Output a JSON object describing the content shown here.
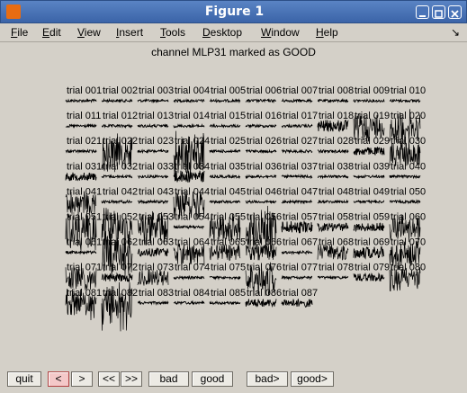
{
  "window": {
    "title": "Figure 1"
  },
  "menu": {
    "items": [
      {
        "pre": "",
        "ul": "F",
        "post": "ile"
      },
      {
        "pre": "",
        "ul": "E",
        "post": "dit"
      },
      {
        "pre": "",
        "ul": "V",
        "post": "iew"
      },
      {
        "pre": "",
        "ul": "I",
        "post": "nsert"
      },
      {
        "pre": "",
        "ul": "T",
        "post": "ools"
      },
      {
        "pre": "",
        "ul": "D",
        "post": "esktop"
      },
      {
        "pre": "",
        "ul": "W",
        "post": "indow"
      },
      {
        "pre": "",
        "ul": "H",
        "post": "elp"
      }
    ],
    "dock_icon": "↘"
  },
  "plot": {
    "title": "channel MLP31 marked as GOOD",
    "trials": [
      "trial 001",
      "trial 002",
      "trial 003",
      "trial 004",
      "trial 005",
      "trial 006",
      "trial 007",
      "trial 008",
      "trial 009",
      "trial 010",
      "trial 011",
      "trial 012",
      "trial 013",
      "trial 014",
      "trial 015",
      "trial 016",
      "trial 017",
      "trial 018",
      "trial 019",
      "trial 020",
      "trial 021",
      "trial 022",
      "trial 023",
      "trial 024",
      "trial 025",
      "trial 026",
      "trial 027",
      "trial 028",
      "trial 029",
      "trial 030",
      "trial 031",
      "trial 032",
      "trial 033",
      "trial 034",
      "trial 035",
      "trial 036",
      "trial 037",
      "trial 038",
      "trial 039",
      "trial 040",
      "trial 041",
      "trial 042",
      "trial 043",
      "trial 044",
      "trial 045",
      "trial 046",
      "trial 047",
      "trial 048",
      "trial 049",
      "trial 050",
      "trial 051",
      "trial 052",
      "trial 053",
      "trial 054",
      "trial 055",
      "trial 056",
      "trial 057",
      "trial 058",
      "trial 059",
      "trial 060",
      "trial 061",
      "trial 062",
      "trial 063",
      "trial 064",
      "trial 065",
      "trial 066",
      "trial 067",
      "trial 068",
      "trial 069",
      "trial 070",
      "trial 071",
      "trial 072",
      "trial 073",
      "trial 074",
      "trial 075",
      "trial 076",
      "trial 077",
      "trial 078",
      "trial 079",
      "trial 080",
      "trial 081",
      "trial 082",
      "trial 083",
      "trial 084",
      "trial 085",
      "trial 086",
      "trial 087"
    ],
    "noise_amplitude": [
      1,
      1,
      1,
      1,
      1,
      1,
      1,
      1,
      1,
      1,
      1,
      1,
      1,
      1,
      1,
      1,
      1,
      3,
      6,
      7,
      1,
      8,
      1,
      9,
      1,
      1,
      1,
      1,
      2,
      6,
      2,
      1,
      1,
      3,
      1,
      1,
      1,
      1,
      1,
      1,
      5,
      1,
      1,
      6,
      1,
      1,
      1,
      1,
      1,
      1,
      9,
      10,
      7,
      1,
      6,
      9,
      3,
      2,
      2,
      6,
      1,
      10,
      2,
      5,
      4,
      4,
      1,
      4,
      3,
      6,
      5,
      2,
      4,
      1,
      1,
      7,
      1,
      1,
      2,
      5,
      6,
      10,
      1,
      1,
      1,
      2,
      2
    ]
  },
  "buttons": {
    "quit": "quit",
    "prev": "<",
    "next": ">",
    "prev_fast": "<<",
    "next_fast": ">>",
    "bad": "bad",
    "good": "good",
    "bad_next": "bad>",
    "good_next": "good>"
  }
}
